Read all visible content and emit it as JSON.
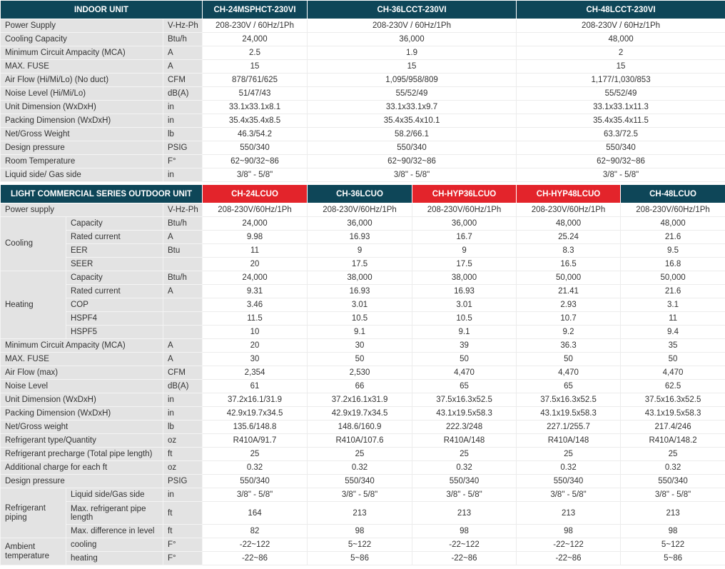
{
  "colors": {
    "header": "#0e4658",
    "highlight": "#e3242b",
    "label_bg": "#e3e3e3"
  },
  "indoor": {
    "header_label": "INDOOR UNIT",
    "models": [
      "CH-24MSPHCT-230VI",
      "CH-36LCCT-230VI",
      "CH-48LCCT-230VI"
    ],
    "rows": [
      {
        "label": "Power Supply",
        "unit": "V-Hz-Ph",
        "values": [
          "208-230V / 60Hz/1Ph",
          "208-230V / 60Hz/1Ph",
          "208-230V / 60Hz/1Ph"
        ]
      },
      {
        "label": "Cooling Capacity",
        "unit": "Btu/h",
        "values": [
          "24,000",
          "36,000",
          "48,000"
        ]
      },
      {
        "label": "Minimum Circuit Ampacity (MCA)",
        "unit": "A",
        "values": [
          "2.5",
          "1.9",
          "2"
        ]
      },
      {
        "label": "MAX. FUSE",
        "unit": "A",
        "values": [
          "15",
          "15",
          "15"
        ]
      },
      {
        "label": "Air Flow (Hi/Mi/Lo)  (No duct)",
        "unit": "CFM",
        "values": [
          "878/761/625",
          "1,095/958/809",
          "1,177/1,030/853"
        ]
      },
      {
        "label": "Noise Level (Hi/Mi/Lo)",
        "unit": "dB(A)",
        "values": [
          "51/47/43",
          "55/52/49",
          "55/52/49"
        ]
      },
      {
        "label": "Unit Dimension (WxDxH)",
        "unit": "in",
        "values": [
          "33.1x33.1x8.1",
          "33.1x33.1x9.7",
          "33.1x33.1x11.3"
        ]
      },
      {
        "label": "Packing Dimension (WxDxH)",
        "unit": "in",
        "values": [
          "35.4x35.4x8.5",
          "35.4x35.4x10.1",
          "35.4x35.4x11.5"
        ]
      },
      {
        "label": "Net/Gross Weight",
        "unit": "lb",
        "values": [
          "46.3/54.2",
          "58.2/66.1",
          "63.3/72.5"
        ]
      },
      {
        "label": "Design pressure",
        "unit": "PSIG",
        "values": [
          "550/340",
          "550/340",
          "550/340"
        ]
      },
      {
        "label": "Room Temperature",
        "unit": "F°",
        "values": [
          "62~90/32~86",
          "62~90/32~86",
          "62~90/32~86"
        ]
      },
      {
        "label": "Liquid side/ Gas side",
        "unit": "in",
        "values": [
          "3/8\" - 5/8\"",
          "3/8\" - 5/8\"",
          "3/8\" - 5/8\""
        ]
      }
    ]
  },
  "outdoor": {
    "header_label": "LIGHT COMMERCIAL SERIES OUTDOOR UNIT",
    "models": [
      {
        "name": "CH-24LCUO",
        "highlight": true
      },
      {
        "name": "CH-36LCUO",
        "highlight": false
      },
      {
        "name": "CH-HYP36LCUO",
        "highlight": true
      },
      {
        "name": "CH-HYP48LCUO",
        "highlight": true
      },
      {
        "name": "CH-48LCUO",
        "highlight": false
      }
    ],
    "rows": [
      {
        "label": "Power supply",
        "unit": "V-Hz-Ph",
        "values": [
          "208-230V/60Hz/1Ph",
          "208-230V/60Hz/1Ph",
          "208-230V/60Hz/1Ph",
          "208-230V/60Hz/1Ph",
          "208-230V/60Hz/1Ph"
        ]
      },
      {
        "group": "Cooling",
        "items": [
          {
            "label": "Capacity",
            "unit": "Btu/h",
            "values": [
              "24,000",
              "36,000",
              "36,000",
              "48,000",
              "48,000"
            ]
          },
          {
            "label": "Rated current",
            "unit": "A",
            "values": [
              "9.98",
              "16.93",
              "16.7",
              "25.24",
              "21.6"
            ]
          },
          {
            "label": "EER",
            "unit": "Btu",
            "values": [
              "11",
              "9",
              "9",
              "8.3",
              "9.5"
            ]
          },
          {
            "label": "SEER",
            "unit": "",
            "values": [
              "20",
              "17.5",
              "17.5",
              "16.5",
              "16.8"
            ]
          }
        ]
      },
      {
        "group": "Heating",
        "items": [
          {
            "label": "Capacity",
            "unit": "Btu/h",
            "values": [
              "24,000",
              "38,000",
              "38,000",
              "50,000",
              "50,000"
            ]
          },
          {
            "label": "Rated current",
            "unit": "A",
            "values": [
              "9.31",
              "16.93",
              "16.93",
              "21.41",
              "21.6"
            ]
          },
          {
            "label": "COP",
            "unit": "",
            "values": [
              "3.46",
              "3.01",
              "3.01",
              "2.93",
              "3.1"
            ]
          },
          {
            "label": "HSPF4",
            "unit": "",
            "values": [
              "11.5",
              "10.5",
              "10.5",
              "10.7",
              "11"
            ]
          },
          {
            "label": "HSPF5",
            "unit": "",
            "values": [
              "10",
              "9.1",
              "9.1",
              "9.2",
              "9.4"
            ]
          }
        ]
      },
      {
        "label": "Minimum Circuit Ampacity (MCA)",
        "unit": "A",
        "values": [
          "20",
          "30",
          "39",
          "36.3",
          "35"
        ]
      },
      {
        "label": "MAX. FUSE",
        "unit": "A",
        "values": [
          "30",
          "50",
          "50",
          "50",
          "50"
        ]
      },
      {
        "label": "Air Flow (max)",
        "unit": "CFM",
        "values": [
          "2,354",
          "2,530",
          "4,470",
          "4,470",
          "4,470"
        ]
      },
      {
        "label": "Noise Level",
        "unit": "dB(A)",
        "values": [
          "61",
          "66",
          "65",
          "65",
          "62.5"
        ]
      },
      {
        "label": "Unit Dimension (WxDxH)",
        "unit": "in",
        "values": [
          "37.2x16.1/31.9",
          "37.2x16.1x31.9",
          "37.5x16.3x52.5",
          "37.5x16.3x52.5",
          "37.5x16.3x52.5"
        ]
      },
      {
        "label": "Packing Dimension (WxDxH)",
        "unit": "in",
        "values": [
          "42.9x19.7x34.5",
          "42.9x19.7x34.5",
          "43.1x19.5x58.3",
          "43.1x19.5x58.3",
          "43.1x19.5x58.3"
        ]
      },
      {
        "label": "Net/Gross weight",
        "unit": "lb",
        "values": [
          "135.6/148.8",
          "148.6/160.9",
          "222.3/248",
          "227.1/255.7",
          "217.4/246"
        ]
      },
      {
        "label": "Refrigerant type/Quantity",
        "unit": "oz",
        "values": [
          "R410A/91.7",
          "R410A/107.6",
          "R410A/148",
          "R410A/148",
          "R410A/148.2"
        ]
      },
      {
        "label": "Refrigerant precharge (Total pipe length)",
        "unit": "ft",
        "values": [
          "25",
          "25",
          "25",
          "25",
          "25"
        ]
      },
      {
        "label": "Additional charge for each ft",
        "unit": "oz",
        "values": [
          "0.32",
          "0.32",
          "0.32",
          "0.32",
          "0.32"
        ]
      },
      {
        "label": "Design pressure",
        "unit": "PSIG",
        "values": [
          "550/340",
          "550/340",
          "550/340",
          "550/340",
          "550/340"
        ]
      },
      {
        "group": "Refrigerant piping",
        "items": [
          {
            "label": "Liquid side/Gas side",
            "unit": "in",
            "values": [
              "3/8\" - 5/8\"",
              "3/8\" - 5/8\"",
              "3/8\" - 5/8\"",
              "3/8\" - 5/8\"",
              "3/8\" - 5/8\""
            ]
          },
          {
            "label": "Max. refrigerant pipe length",
            "unit": "ft",
            "values": [
              "164",
              "213",
              "213",
              "213",
              "213"
            ],
            "tall": true
          },
          {
            "label": "Max. difference in level",
            "unit": "ft",
            "values": [
              "82",
              "98",
              "98",
              "98",
              "98"
            ]
          }
        ]
      },
      {
        "group": "Ambient temperature",
        "items": [
          {
            "label": "cooling",
            "unit": "F°",
            "values": [
              "-22~122",
              "5~122",
              "-22~122",
              "-22~122",
              "5~122"
            ]
          },
          {
            "label": "heating",
            "unit": "F°",
            "values": [
              "-22~86",
              "5~86",
              "-22~86",
              "-22~86",
              "5~86"
            ]
          }
        ]
      }
    ]
  }
}
